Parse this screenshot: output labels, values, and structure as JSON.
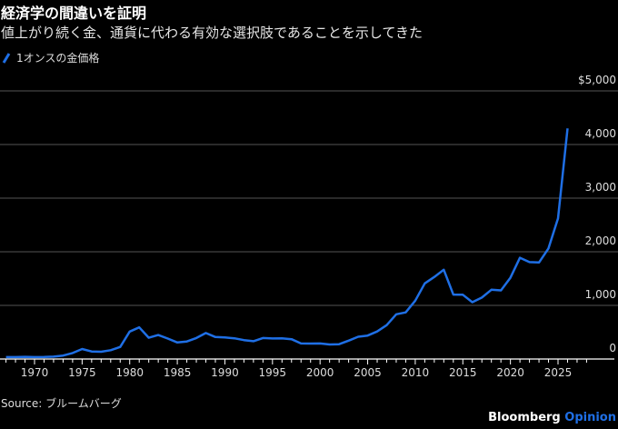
{
  "header": {
    "title": "経済学の間違いを証明",
    "subtitle": "値上がり続く金、通貨に代わる有効な選択肢であることを示してきた"
  },
  "footer": {
    "source": "Source:  ブルームバーグ",
    "brand": "Bloomberg",
    "brand_accent": "Opinion"
  },
  "colors": {
    "line": "#1f6fe5",
    "grid": "#555555",
    "axis": "#ffffff"
  },
  "chart_data": {
    "type": "line",
    "title": "経済学の間違いを証明",
    "legend": [
      "1オンスの金価格"
    ],
    "legend_placement": "top-left",
    "xlabel": "",
    "ylabel": "",
    "xlim": [
      1966.5,
      2029
    ],
    "ylim": [
      0,
      5000
    ],
    "grid": true,
    "y_ticks": [
      {
        "v": 0,
        "label": "0"
      },
      {
        "v": 1000,
        "label": "1,000"
      },
      {
        "v": 2000,
        "label": "2,000"
      },
      {
        "v": 3000,
        "label": "3,000"
      },
      {
        "v": 4000,
        "label": "4,000"
      },
      {
        "v": 5000,
        "label": "$5,000"
      }
    ],
    "x_ticks": [
      {
        "v": 1970,
        "label": "1970"
      },
      {
        "v": 1975,
        "label": "1975"
      },
      {
        "v": 1980,
        "label": "1980"
      },
      {
        "v": 1985,
        "label": "1985"
      },
      {
        "v": 1990,
        "label": "1990"
      },
      {
        "v": 1995,
        "label": "1995"
      },
      {
        "v": 2000,
        "label": "2000"
      },
      {
        "v": 2005,
        "label": "2005"
      },
      {
        "v": 2010,
        "label": "2010"
      },
      {
        "v": 2015,
        "label": "2015"
      },
      {
        "v": 2020,
        "label": "2020"
      },
      {
        "v": 2025,
        "label": "2025"
      }
    ],
    "series": [
      {
        "name": "1オンスの金価格",
        "x": [
          1967,
          1968,
          1969,
          1970,
          1971,
          1972,
          1973,
          1974,
          1975,
          1976,
          1977,
          1978,
          1979,
          1980,
          1981,
          1982,
          1983,
          1984,
          1985,
          1986,
          1987,
          1988,
          1989,
          1990,
          1991,
          1992,
          1993,
          1994,
          1995,
          1996,
          1997,
          1998,
          1999,
          2000,
          2001,
          2002,
          2003,
          2004,
          2005,
          2006,
          2007,
          2008,
          2009,
          2010,
          2011,
          2012,
          2013,
          2014,
          2015,
          2016,
          2017,
          2018,
          2019,
          2020,
          2021,
          2022,
          2023,
          2024,
          2025,
          2026
        ],
        "values": [
          35,
          35,
          41,
          35,
          37,
          44,
          65,
          112,
          187,
          140,
          135,
          165,
          226,
          512,
          590,
          397,
          448,
          382,
          309,
          327,
          391,
          484,
          410,
          401,
          386,
          353,
          333,
          391,
          383,
          387,
          369,
          290,
          288,
          290,
          272,
          277,
          343,
          416,
          438,
          513,
          632,
          834,
          870,
          1088,
          1410,
          1531,
          1664,
          1202,
          1199,
          1060,
          1146,
          1291,
          1279,
          1515,
          1888,
          1806,
          1800,
          2063,
          2624,
          4300
        ]
      }
    ]
  }
}
